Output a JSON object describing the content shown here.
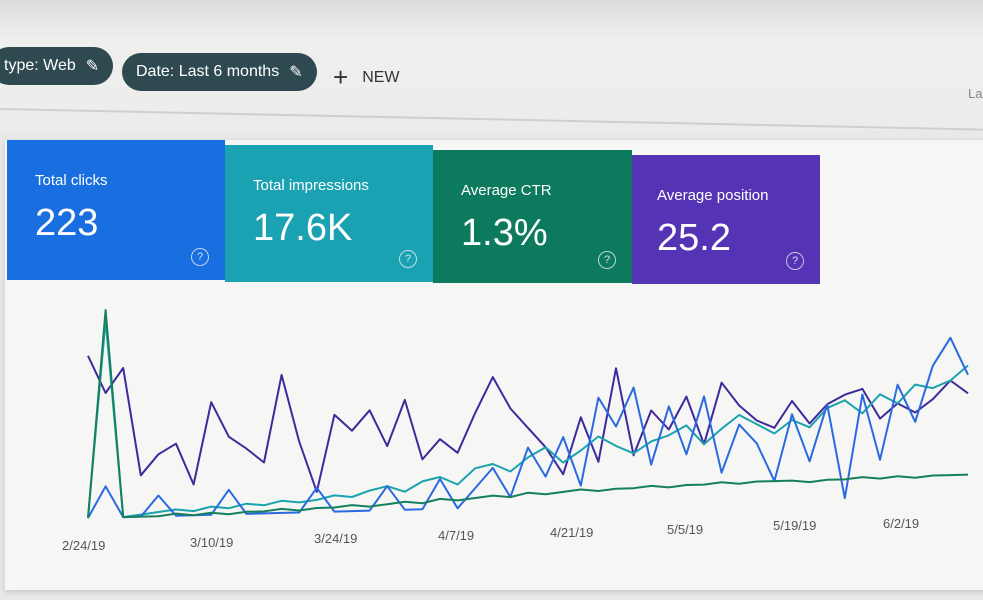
{
  "filters": [
    {
      "label": "type: Web",
      "icon": "pencil-icon"
    },
    {
      "label": "Date: Last 6 months",
      "icon": "pencil-icon"
    }
  ],
  "new_button": {
    "label": "NEW",
    "icon": "plus-icon"
  },
  "right_partial": "La",
  "metrics": [
    {
      "label": "Total clicks",
      "value": "223",
      "color": "#1a6fe0"
    },
    {
      "label": "Total impressions",
      "value": "17.6K",
      "color": "#1aa2b2"
    },
    {
      "label": "Average CTR",
      "value": "1.3%",
      "color": "#0d7a5d"
    },
    {
      "label": "Average position",
      "value": "25.2",
      "color": "#5434b4"
    }
  ],
  "chart_data": {
    "type": "line",
    "x_ticks": [
      "2/24/19",
      "3/10/19",
      "3/24/19",
      "4/7/19",
      "4/21/19",
      "5/5/19",
      "5/19/19",
      "6/2/19"
    ],
    "grid": false,
    "series": [
      {
        "metric": "Average position",
        "color": "#3f2a9a",
        "values": [
          78,
          60,
          72,
          20,
          30,
          35,
          15,
          55,
          38,
          32,
          25,
          68,
          35,
          10,
          48,
          40,
          50,
          32,
          55,
          25,
          35,
          28,
          48,
          66,
          50,
          40,
          30,
          16,
          45,
          22,
          70,
          25,
          48,
          38,
          55,
          30,
          62,
          50,
          42,
          38,
          52,
          40,
          50,
          55,
          58,
          42,
          50,
          45,
          52,
          62,
          55
        ]
      },
      {
        "metric": "Total impressions",
        "color": "#1ba3ad",
        "values": [
          0,
          95,
          0,
          1,
          2,
          3,
          2,
          4,
          3,
          5,
          4,
          6,
          5,
          6,
          8,
          7,
          10,
          12,
          9,
          14,
          16,
          12,
          20,
          22,
          18,
          25,
          30,
          22,
          28,
          35,
          30,
          26,
          32,
          35,
          40,
          30,
          38,
          45,
          40,
          35,
          42,
          38,
          48,
          52,
          45,
          55,
          50,
          60,
          58,
          62,
          70
        ]
      },
      {
        "metric": "Total clicks",
        "color": "#2a6ae0",
        "values": [
          0,
          15,
          0,
          0,
          10,
          0,
          0,
          0,
          12,
          0,
          0,
          0,
          0,
          12,
          0,
          0,
          0,
          12,
          0,
          0,
          15,
          0,
          10,
          20,
          5,
          30,
          15,
          35,
          10,
          55,
          40,
          60,
          20,
          50,
          25,
          55,
          15,
          40,
          30,
          10,
          45,
          20,
          50,
          0,
          55,
          20,
          60,
          40,
          70,
          85,
          65
        ]
      },
      {
        "metric": "Average CTR",
        "color": "#16805e",
        "values": [
          0,
          100,
          0,
          0,
          0,
          1,
          0,
          1,
          0,
          1,
          1,
          2,
          1,
          2,
          2,
          3,
          2,
          3,
          4,
          3,
          5,
          4,
          5,
          6,
          5,
          7,
          6,
          7,
          8,
          7,
          8,
          8,
          9,
          8,
          9,
          9,
          10,
          9,
          10,
          10,
          10,
          9,
          10,
          10,
          11,
          10,
          11,
          10,
          11,
          11,
          11
        ]
      }
    ]
  }
}
